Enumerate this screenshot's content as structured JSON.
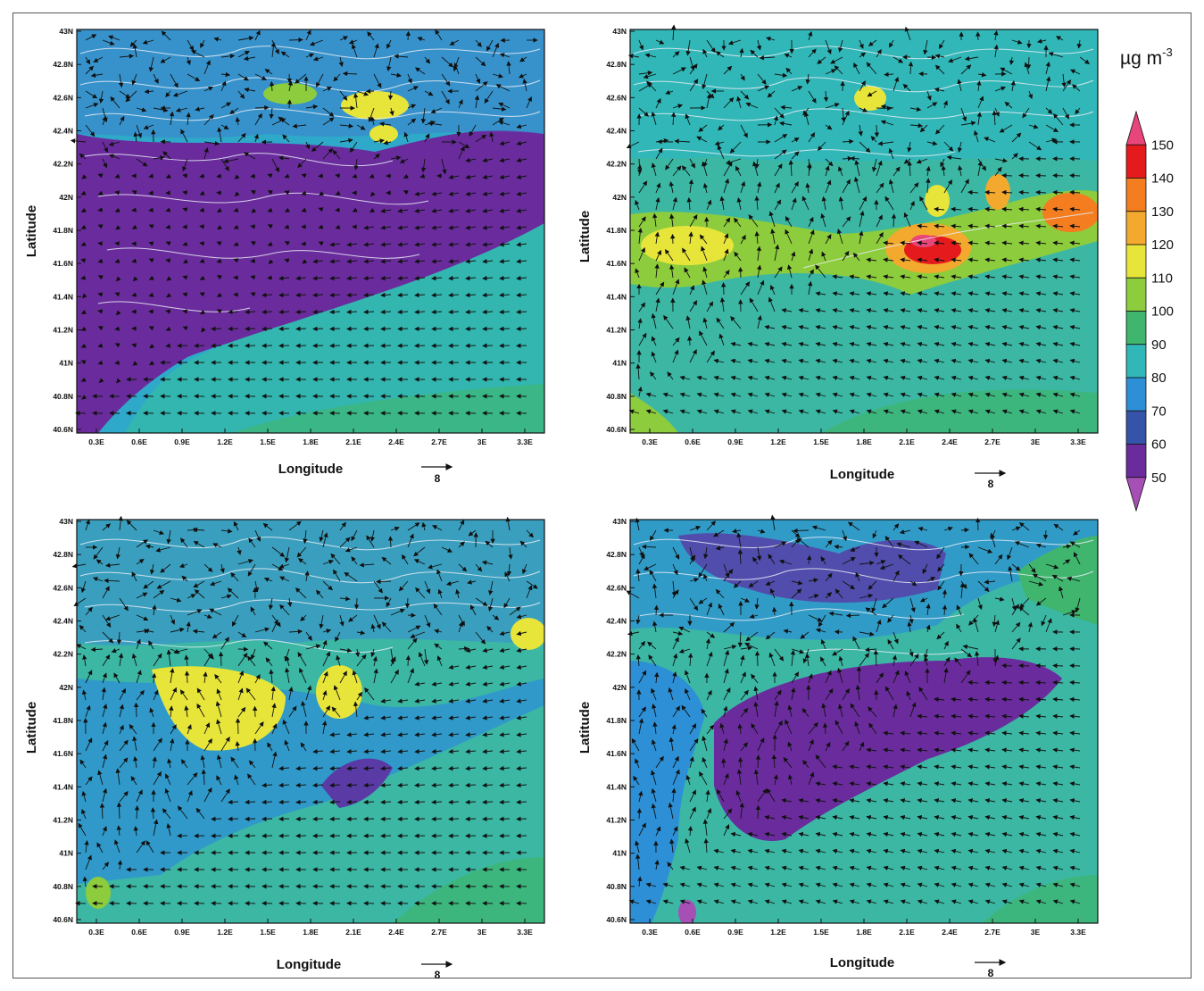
{
  "figure": {
    "units_label": "µg m",
    "units_exponent": "-3",
    "vector_reference": "8"
  },
  "axes": {
    "xlabel": "Longitude",
    "ylabel": "Latitude",
    "x_ticks": [
      "0.3E",
      "0.6E",
      "0.9E",
      "1.2E",
      "1.5E",
      "1.8E",
      "2.1E",
      "2.4E",
      "2.7E",
      "3E",
      "3.3E"
    ],
    "y_ticks": [
      "43N",
      "42.8N",
      "42.6N",
      "42.4N",
      "42.2N",
      "42N",
      "41.8N",
      "41.6N",
      "41.4N",
      "41.2N",
      "41N",
      "40.8N",
      "40.6N"
    ]
  },
  "colorbar": {
    "labels": [
      "150",
      "140",
      "130",
      "120",
      "110",
      "100",
      "90",
      "80",
      "70",
      "60",
      "50"
    ],
    "colors": [
      "#e8457a",
      "#e41a1c",
      "#f47d20",
      "#f2a92e",
      "#e7e53a",
      "#8dcc3c",
      "#3fb56d",
      "#31b7b8",
      "#2d8fd6",
      "#3553a8",
      "#6a2c9c",
      "#a64fb5"
    ]
  },
  "colors": {
    "land_base": "#2ab3c4",
    "sea": "#3bb7a4",
    "contour": "#e8ecf4",
    "vector": "#111111"
  },
  "panels": [
    {
      "id": "top-left",
      "x": "0.3E–3.3E",
      "y": "40.6N–43N"
    },
    {
      "id": "top-right",
      "x": "0.3E–3.3E",
      "y": "40.6N–43N"
    },
    {
      "id": "bottom-left",
      "x": "0.3E–3.3E",
      "y": "40.6N–43N"
    },
    {
      "id": "bottom-right",
      "x": "0.3E–3.3E",
      "y": "40.6N–43N"
    }
  ]
}
